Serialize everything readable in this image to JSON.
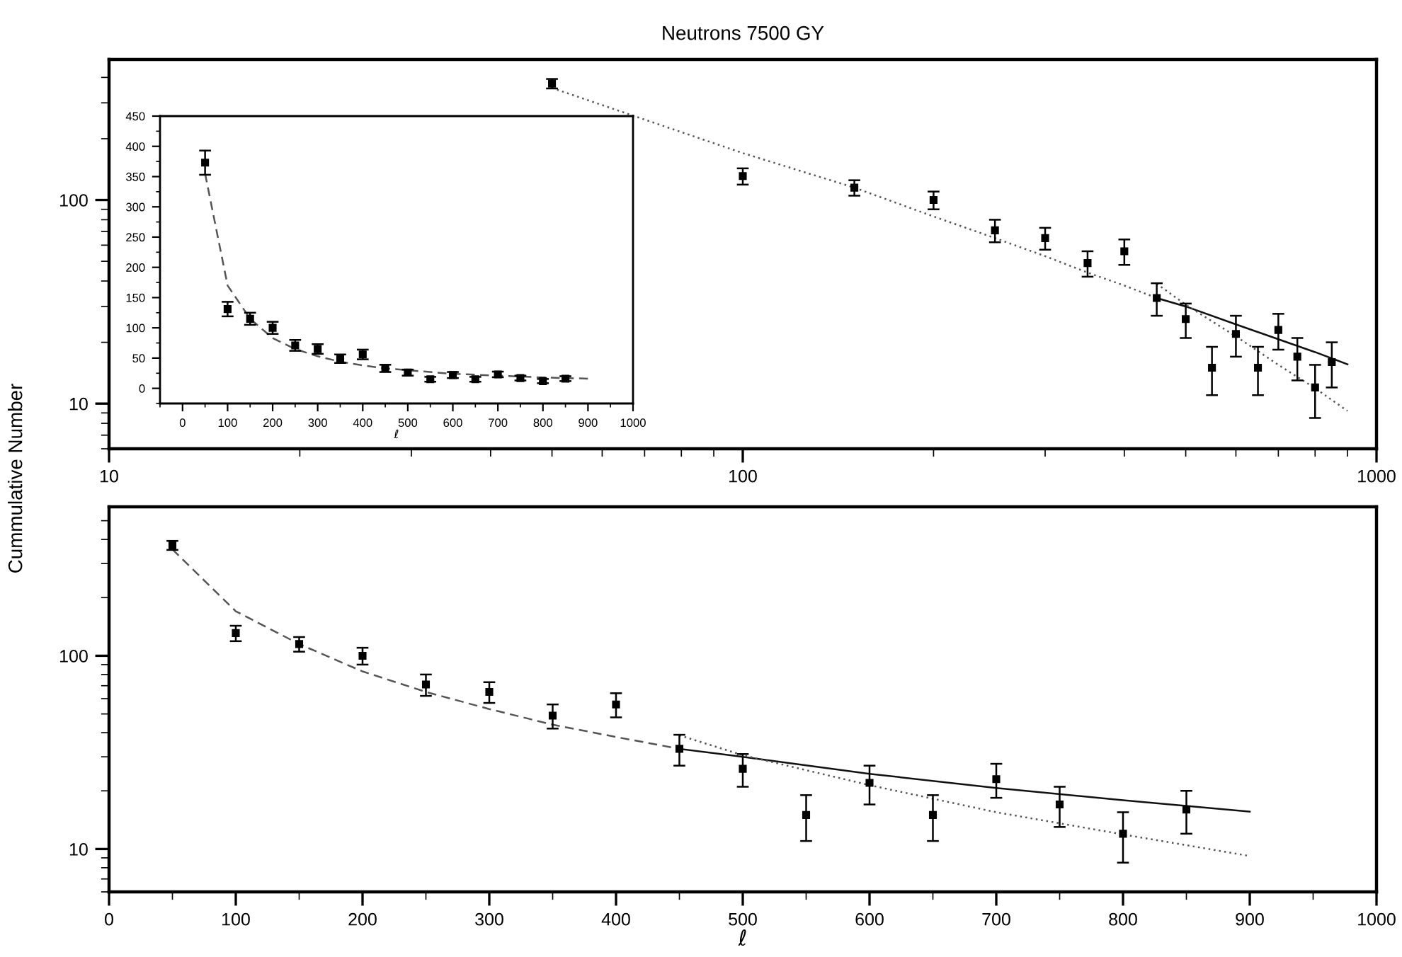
{
  "chart_data": [
    {
      "type": "scatter",
      "title": "Neutrons 7500 GY",
      "ylabel": "Cummulative Number",
      "log": "xy",
      "xlim": [
        10,
        1000
      ],
      "ylim": [
        6,
        490
      ],
      "xticks": [
        10,
        100,
        1000
      ],
      "yticks": [
        10,
        100
      ],
      "grid": false,
      "legend": false,
      "marker": "square",
      "x": [
        50,
        100,
        150,
        200,
        250,
        300,
        350,
        400,
        450,
        500,
        550,
        600,
        650,
        700,
        750,
        800,
        850
      ],
      "series": [
        {
          "color": "#000000",
          "values": [
            373,
            131,
            115,
            100,
            71,
            65,
            49,
            56,
            33,
            26,
            15,
            22,
            15,
            23,
            17,
            12,
            16
          ],
          "errors": [
            20,
            12,
            10,
            10,
            9,
            8,
            7,
            8,
            6,
            5,
            4,
            5,
            4,
            4.6,
            4,
            3.5,
            4
          ]
        },
        {
          "type": "line",
          "marker": "none",
          "color": "#555555",
          "line_style": "dotted",
          "x": [
            50,
            100,
            150,
            200,
            250,
            300,
            350,
            400,
            450
          ],
          "values": [
            355,
            170,
            115,
            83,
            65,
            53,
            44,
            38,
            33
          ]
        },
        {
          "type": "line",
          "marker": "none",
          "color": "#111111",
          "line_style": "solid",
          "x": [
            450,
            500,
            600,
            700,
            800,
            900
          ],
          "values": [
            33,
            30,
            24.5,
            20.7,
            17.9,
            15.6
          ]
        },
        {
          "type": "line",
          "marker": "none",
          "color": "#555555",
          "line_style": "dotted",
          "x": [
            450,
            500,
            600,
            700,
            800,
            900
          ],
          "values": [
            38.8,
            30.6,
            21.4,
            15.5,
            11.9,
            9.2
          ]
        }
      ]
    },
    {
      "type": "scatter",
      "xlabel": "ℓ",
      "xlim": [
        -50,
        1000
      ],
      "ylim": [
        -25,
        450
      ],
      "xticks": [
        0,
        100,
        200,
        300,
        400,
        500,
        600,
        700,
        800,
        900,
        1000
      ],
      "yticks": [
        0,
        50,
        100,
        150,
        200,
        250,
        300,
        350,
        400,
        450
      ],
      "grid": false,
      "legend": false,
      "marker": "square",
      "x": [
        50,
        100,
        150,
        200,
        250,
        300,
        350,
        400,
        450,
        500,
        550,
        600,
        650,
        700,
        750,
        800,
        850
      ],
      "series": [
        {
          "color": "#000000",
          "values": [
            373,
            131,
            115,
            100,
            71,
            65,
            49,
            56,
            33,
            26,
            15,
            22,
            15,
            23,
            17,
            12,
            16
          ],
          "errors": [
            20,
            12,
            10,
            10,
            9,
            8,
            7,
            8,
            6,
            5,
            4,
            5,
            4,
            4.6,
            4,
            3.5,
            4
          ]
        },
        {
          "type": "line",
          "marker": "none",
          "color": "#555555",
          "line_style": "dashed",
          "x": [
            50,
            100,
            150,
            200,
            250,
            300,
            350,
            400,
            450,
            500,
            600,
            700,
            800,
            900
          ],
          "values": [
            355,
            170,
            115,
            83,
            65,
            53,
            44,
            38,
            33,
            30,
            24,
            21,
            18,
            16
          ]
        }
      ]
    },
    {
      "type": "scatter",
      "xlabel": "ℓ",
      "log": "y",
      "xlim": [
        0,
        1000
      ],
      "ylim": [
        6,
        590
      ],
      "xticks": [
        0,
        100,
        200,
        300,
        400,
        500,
        600,
        700,
        800,
        900,
        1000
      ],
      "yticks": [
        10,
        100
      ],
      "grid": false,
      "legend": false,
      "marker": "square",
      "x": [
        50,
        100,
        150,
        200,
        250,
        300,
        350,
        400,
        450,
        500,
        550,
        600,
        650,
        700,
        750,
        800,
        850
      ],
      "series": [
        {
          "color": "#000000",
          "values": [
            373,
            131,
            115,
            100,
            71,
            65,
            49,
            56,
            33,
            26,
            15,
            22,
            15,
            23,
            17,
            12,
            16
          ],
          "errors": [
            20,
            12,
            10,
            10,
            9,
            8,
            7,
            8,
            6,
            5,
            4,
            5,
            4,
            4.6,
            4,
            3.5,
            4
          ]
        },
        {
          "type": "line",
          "marker": "none",
          "color": "#555555",
          "line_style": "dashed",
          "x": [
            50,
            100,
            150,
            200,
            250,
            300,
            350,
            400,
            450
          ],
          "values": [
            355,
            170,
            115,
            83,
            65,
            53,
            44,
            38,
            33
          ]
        },
        {
          "type": "line",
          "marker": "none",
          "color": "#111111",
          "line_style": "solid",
          "x": [
            450,
            500,
            600,
            700,
            800,
            900
          ],
          "values": [
            33,
            30,
            24.5,
            20.7,
            17.9,
            15.6
          ]
        },
        {
          "type": "line",
          "marker": "none",
          "color": "#555555",
          "line_style": "dotted",
          "x": [
            450,
            500,
            600,
            700,
            800,
            900
          ],
          "values": [
            38.8,
            30.6,
            21.4,
            15.5,
            11.9,
            9.2
          ]
        }
      ]
    }
  ]
}
